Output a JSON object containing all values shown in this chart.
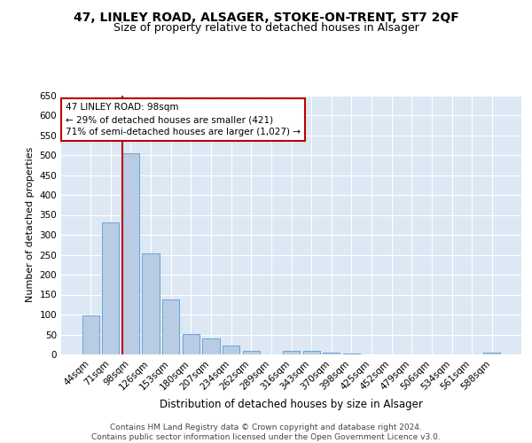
{
  "title1": "47, LINLEY ROAD, ALSAGER, STOKE-ON-TRENT, ST7 2QF",
  "title2": "Size of property relative to detached houses in Alsager",
  "xlabel": "Distribution of detached houses by size in Alsager",
  "ylabel": "Number of detached properties",
  "categories": [
    "44sqm",
    "71sqm",
    "98sqm",
    "126sqm",
    "153sqm",
    "180sqm",
    "207sqm",
    "234sqm",
    "262sqm",
    "289sqm",
    "316sqm",
    "343sqm",
    "370sqm",
    "398sqm",
    "425sqm",
    "452sqm",
    "479sqm",
    "506sqm",
    "534sqm",
    "561sqm",
    "588sqm"
  ],
  "values": [
    97,
    332,
    505,
    253,
    137,
    52,
    39,
    23,
    8,
    1,
    10,
    10,
    5,
    2,
    1,
    1,
    1,
    1,
    1,
    1,
    5
  ],
  "bar_color": "#b8cce4",
  "bar_edge_color": "#5b9bd5",
  "highlight_index": 2,
  "highlight_line_color": "#c00000",
  "annotation_text": "47 LINLEY ROAD: 98sqm\n← 29% of detached houses are smaller (421)\n71% of semi-detached houses are larger (1,027) →",
  "annotation_box_color": "#ffffff",
  "annotation_box_edge": "#c00000",
  "ylim": [
    0,
    650
  ],
  "yticks": [
    0,
    50,
    100,
    150,
    200,
    250,
    300,
    350,
    400,
    450,
    500,
    550,
    600,
    650
  ],
  "background_color": "#dde8f4",
  "footer": "Contains HM Land Registry data © Crown copyright and database right 2024.\nContains public sector information licensed under the Open Government Licence v3.0.",
  "title1_fontsize": 10,
  "title2_fontsize": 9,
  "xlabel_fontsize": 8.5,
  "ylabel_fontsize": 8,
  "tick_fontsize": 7.5,
  "footer_fontsize": 6.5
}
